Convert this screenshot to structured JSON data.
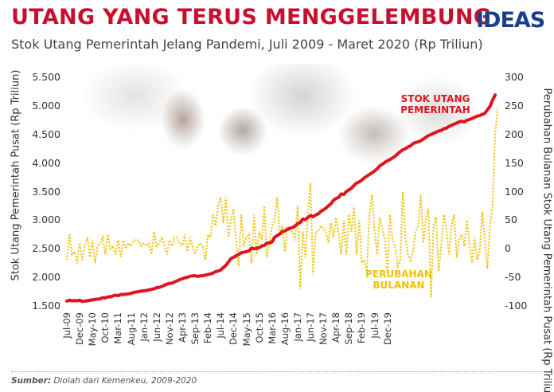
{
  "header": {
    "title": "UTANG YANG TERUS MENGGELEMBUNG",
    "subtitle": "Stok Utang Pemerintah Jelang Pandemi, Juli 2009 - Maret 2020 (Rp Triliun)",
    "logo": "IDEAS"
  },
  "footer": {
    "source_label": "Sumber:",
    "source_text": "Diolah dari Kemenkeu, 2009-2020"
  },
  "colors": {
    "title": "#c8102e",
    "stock": "#e0141e",
    "change": "#f2c200",
    "logo": "#1b3f8f"
  },
  "chart_data": {
    "type": "line",
    "title": "UTANG YANG TERUS MENGGELEMBUNG",
    "subtitle": "Stok Utang Pemerintah Jelang Pandemi, Juli 2009 - Maret 2020 (Rp Triliun)",
    "ylabel": "Stok Utang Pemerintah Pusat (Rp Triliun)",
    "y2label": "Perubahan Bulanan Stok Utang Pemerintah Pusat (Rp Triliun)",
    "ylim": [
      1500,
      5500
    ],
    "y2lim": [
      -100,
      300
    ],
    "yticks": [
      "1.500",
      "2.000",
      "2.500",
      "3.000",
      "3.500",
      "4.000",
      "4.500",
      "5.000",
      "5.500"
    ],
    "y2ticks": [
      "-100",
      "-50",
      "0",
      "50",
      "100",
      "150",
      "200",
      "250",
      "300"
    ],
    "xticks": [
      "Jul-09",
      "Dec-09",
      "May-10",
      "Oct-10",
      "Mar-11",
      "Aug-11",
      "Jan-12",
      "Jun-12",
      "Nov-12",
      "Apr-13",
      "Sep-13",
      "Feb-14",
      "Jul-14",
      "Dec-14",
      "May-15",
      "Oct-15",
      "Mar-16",
      "Aug-16",
      "Jan-17",
      "Jun-17",
      "Nov-17",
      "Apr-18",
      "Sep-18",
      "Feb-19",
      "Jul-19",
      "Dec-19"
    ],
    "annotations": [
      {
        "text": [
          "STOK UTANG",
          "PEMERINTAH"
        ],
        "color": "#e0141e"
      },
      {
        "text": [
          "PERUBAHAN",
          "BULANAN"
        ],
        "color": "#f2c200"
      }
    ],
    "series": [
      {
        "name": "Stok Utang Pemerintah",
        "axis": "left",
        "start": "2009-07",
        "values": [
          1585,
          1600,
          1590,
          1595,
          1590,
          1600,
          1580,
          1585,
          1590,
          1600,
          1605,
          1615,
          1620,
          1625,
          1645,
          1640,
          1660,
          1660,
          1675,
          1690,
          1680,
          1700,
          1700,
          1705,
          1710,
          1720,
          1735,
          1745,
          1750,
          1760,
          1765,
          1770,
          1780,
          1790,
          1800,
          1820,
          1825,
          1840,
          1860,
          1880,
          1895,
          1900,
          1920,
          1940,
          1960,
          1975,
          1995,
          2000,
          2020,
          2025,
          2030,
          2015,
          2025,
          2030,
          2040,
          2050,
          2060,
          2075,
          2100,
          2110,
          2130,
          2170,
          2210,
          2270,
          2330,
          2350,
          2380,
          2400,
          2430,
          2440,
          2450,
          2460,
          2510,
          2500,
          2510,
          2520,
          2550,
          2560,
          2600,
          2600,
          2620,
          2700,
          2730,
          2760,
          2800,
          2810,
          2840,
          2860,
          2870,
          2900,
          2940,
          2960,
          3020,
          3010,
          3050,
          3080,
          3060,
          3090,
          3110,
          3150,
          3180,
          3210,
          3250,
          3290,
          3350,
          3380,
          3400,
          3460,
          3450,
          3500,
          3530,
          3560,
          3610,
          3650,
          3670,
          3700,
          3740,
          3770,
          3800,
          3830,
          3860,
          3900,
          3950,
          3980,
          4010,
          4040,
          4060,
          4090,
          4120,
          4160,
          4200,
          4230,
          4250,
          4280,
          4300,
          4340,
          4360,
          4370,
          4390,
          4420,
          4450,
          4480,
          4500,
          4520,
          4540,
          4560,
          4570,
          4600,
          4610,
          4640,
          4660,
          4680,
          4700,
          4720,
          4730,
          4720,
          4750,
          4760,
          4780,
          4800,
          4820,
          4830,
          4850,
          4870,
          4930,
          4990,
          5100,
          5190
        ]
      },
      {
        "name": "Perubahan Bulanan",
        "axis": "right",
        "start": "2009-07",
        "values": [
          -20,
          25,
          -10,
          -5,
          -25,
          10,
          -20,
          5,
          20,
          -15,
          15,
          -25,
          5,
          10,
          20,
          -10,
          25,
          0,
          5,
          -10,
          15,
          -15,
          15,
          0,
          10,
          5,
          15,
          15,
          15,
          5,
          10,
          5,
          10,
          -10,
          30,
          5,
          10,
          20,
          5,
          -10,
          15,
          5,
          20,
          20,
          10,
          5,
          25,
          -5,
          20,
          5,
          -10,
          5,
          10,
          5,
          -20,
          25,
          20,
          60,
          40,
          75,
          90,
          45,
          90,
          20,
          50,
          70,
          15,
          -30,
          60,
          5,
          20,
          25,
          -25,
          60,
          -10,
          30,
          15,
          75,
          -15,
          10,
          40,
          50,
          90,
          25,
          40,
          -5,
          40,
          30,
          30,
          15,
          75,
          -70,
          30,
          -15,
          60,
          115,
          -45,
          30,
          30,
          40,
          35,
          30,
          10,
          45,
          20,
          55,
          25,
          -10,
          50,
          -10,
          60,
          30,
          75,
          -10,
          50,
          -25,
          -20,
          -40,
          60,
          95,
          30,
          -10,
          55,
          35,
          15,
          -40,
          60,
          15,
          5,
          -30,
          -20,
          100,
          20,
          -10,
          -20,
          -5,
          30,
          40,
          95,
          10,
          50,
          70,
          -85,
          40,
          55,
          -40,
          5,
          60,
          35,
          -10,
          40,
          60,
          -15,
          15,
          25,
          5,
          50,
          10,
          -25,
          20,
          -20,
          -5,
          65,
          15,
          -35,
          40,
          75,
          200,
          245
        ]
      }
    ]
  }
}
